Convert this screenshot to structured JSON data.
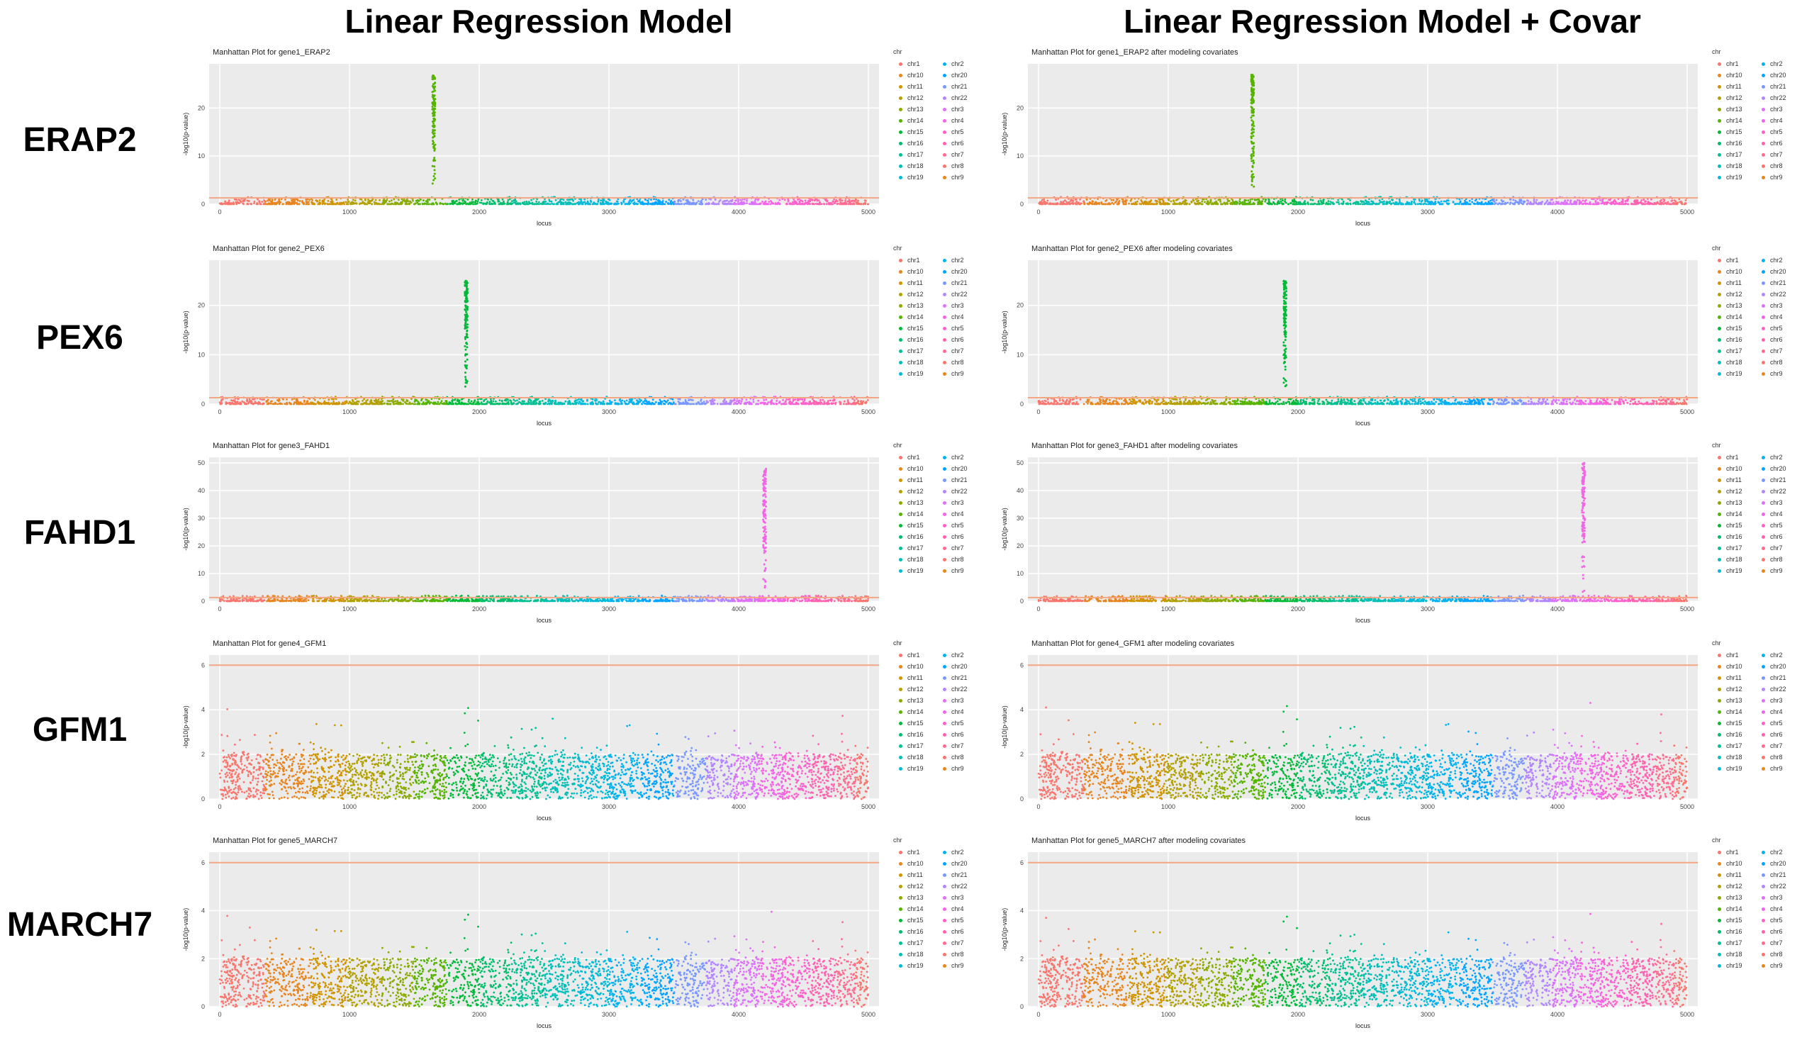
{
  "column_titles": [
    "Linear Regression Model",
    "Linear Regression Model + Covar"
  ],
  "row_labels": [
    "ERAP2",
    "PEX6",
    "FAHD1",
    "GFM1",
    "MARCH7"
  ],
  "legend": {
    "title": "chr",
    "entries": [
      "chr1",
      "chr10",
      "chr11",
      "chr12",
      "chr13",
      "chr14",
      "chr15",
      "chr16",
      "chr17",
      "chr18",
      "chr19",
      "chr2",
      "chr20",
      "chr21",
      "chr22",
      "chr3",
      "chr4",
      "chr5",
      "chr6",
      "chr7",
      "chr8",
      "chr9"
    ],
    "colors": [
      "#F8766D",
      "#E7851E",
      "#D09400",
      "#B2A100",
      "#8BAB00",
      "#55B400",
      "#00BA38",
      "#00BE6C",
      "#00C094",
      "#00BFB8",
      "#00BBD6",
      "#00B3EE",
      "#00A5FF",
      "#7997FF",
      "#B385FF",
      "#DC71FA",
      "#F265E7",
      "#FE60CE",
      "#FF62B0",
      "#FF6C91",
      "#F8766D",
      "#E7851E"
    ]
  },
  "chart_data": [
    {
      "type": "scatter",
      "title": "Manhattan Plot for gene1_ERAP2",
      "xlabel": "locus",
      "ylabel": "-log10(p-value)",
      "xlim": [
        0,
        5000
      ],
      "ylim": [
        0,
        28
      ],
      "y_ticks": [
        0,
        10,
        20
      ],
      "x_ticks": [
        0,
        1000,
        2000,
        3000,
        4000,
        5000
      ],
      "threshold": 1.3,
      "peak": {
        "x": 1650,
        "max": 27,
        "min_ls": 1.3
      },
      "baseline_max": 1.5,
      "grid": true
    },
    {
      "type": "scatter",
      "title": "Manhattan Plot for gene1_ERAP2 after modeling covariates",
      "xlabel": "locus",
      "ylabel": "-log10(p-value)",
      "xlim": [
        0,
        5000
      ],
      "ylim": [
        0,
        28
      ],
      "y_ticks": [
        0,
        10,
        20
      ],
      "x_ticks": [
        0,
        1000,
        2000,
        3000,
        4000,
        5000
      ],
      "threshold": 1.3,
      "peak": {
        "x": 1650,
        "max": 27,
        "min_ls": 1.3
      },
      "baseline_max": 1.5,
      "grid": true
    },
    {
      "type": "scatter",
      "title": "Manhattan Plot for gene2_PEX6",
      "xlabel": "locus",
      "ylabel": "-log10(p-value)",
      "xlim": [
        0,
        5000
      ],
      "ylim": [
        0,
        28
      ],
      "y_ticks": [
        0,
        10,
        20
      ],
      "x_ticks": [
        0,
        1000,
        2000,
        3000,
        4000,
        5000
      ],
      "threshold": 1.3,
      "peak": {
        "x": 1900,
        "max": 25,
        "min_ls": 1.3
      },
      "baseline_max": 1.5,
      "grid": true
    },
    {
      "type": "scatter",
      "title": "Manhattan Plot for gene2_PEX6 after modeling covariates",
      "xlabel": "locus",
      "ylabel": "-log10(p-value)",
      "xlim": [
        0,
        5000
      ],
      "ylim": [
        0,
        28
      ],
      "y_ticks": [
        0,
        10,
        20
      ],
      "x_ticks": [
        0,
        1000,
        2000,
        3000,
        4000,
        5000
      ],
      "threshold": 1.3,
      "peak": {
        "x": 1900,
        "max": 25,
        "min_ls": 1.3
      },
      "baseline_max": 1.5,
      "grid": true
    },
    {
      "type": "scatter",
      "title": "Manhattan Plot for gene3_FAHD1",
      "xlabel": "locus",
      "ylabel": "-log10(p-value)",
      "xlim": [
        0,
        5000
      ],
      "ylim": [
        0,
        50
      ],
      "y_ticks": [
        0,
        10,
        20,
        30,
        40,
        50
      ],
      "x_ticks": [
        0,
        1000,
        2000,
        3000,
        4000,
        5000
      ],
      "threshold": 1.3,
      "peak": {
        "x": 4200,
        "max": 48,
        "min_ls": 1.3
      },
      "baseline_max": 2,
      "grid": true
    },
    {
      "type": "scatter",
      "title": "Manhattan Plot for gene3_FAHD1 after modeling covariates",
      "xlabel": "locus",
      "ylabel": "-log10(p-value)",
      "xlim": [
        0,
        5000
      ],
      "ylim": [
        0,
        50
      ],
      "y_ticks": [
        0,
        10,
        20,
        30,
        40,
        50
      ],
      "x_ticks": [
        0,
        1000,
        2000,
        3000,
        4000,
        5000
      ],
      "threshold": 1.3,
      "peak": {
        "x": 4200,
        "max": 50,
        "min_ls": 1.3
      },
      "baseline_max": 2,
      "grid": true
    },
    {
      "type": "scatter",
      "title": "Manhattan Plot for gene4_GFM1",
      "xlabel": "locus",
      "ylabel": "-log10(p-value)",
      "xlim": [
        0,
        5000
      ],
      "ylim": [
        0,
        6.2
      ],
      "y_ticks": [
        0,
        2,
        4,
        6
      ],
      "x_ticks": [
        0,
        1000,
        2000,
        3000,
        4000,
        5000
      ],
      "threshold": 6,
      "peak": null,
      "baseline_max": 2,
      "max_outlier": 4.5,
      "grid": true
    },
    {
      "type": "scatter",
      "title": "Manhattan Plot for gene4_GFM1 after modeling covariates",
      "xlabel": "locus",
      "ylabel": "-log10(p-value)",
      "xlim": [
        0,
        5000
      ],
      "ylim": [
        0,
        6.2
      ],
      "y_ticks": [
        0,
        2,
        4,
        6
      ],
      "x_ticks": [
        0,
        1000,
        2000,
        3000,
        4000,
        5000
      ],
      "threshold": 6,
      "peak": null,
      "baseline_max": 2,
      "max_outlier": 4.6,
      "grid": true
    },
    {
      "type": "scatter",
      "title": "Manhattan Plot for gene5_MARCH7",
      "xlabel": "locus",
      "ylabel": "-log10(p-value)",
      "xlim": [
        0,
        5000
      ],
      "ylim": [
        0,
        6.2
      ],
      "y_ticks": [
        0,
        2,
        4,
        6
      ],
      "x_ticks": [
        0,
        1000,
        2000,
        3000,
        4000,
        5000
      ],
      "threshold": 6,
      "peak": null,
      "baseline_max": 2,
      "max_outlier": 4.2,
      "grid": true
    },
    {
      "type": "scatter",
      "title": "Manhattan Plot for gene5_MARCH7 after modeling covariates",
      "xlabel": "locus",
      "ylabel": "-log10(p-value)",
      "xlim": [
        0,
        5000
      ],
      "ylim": [
        0,
        6.2
      ],
      "y_ticks": [
        0,
        2,
        4,
        6
      ],
      "x_ticks": [
        0,
        1000,
        2000,
        3000,
        4000,
        5000
      ],
      "threshold": 6,
      "peak": null,
      "baseline_max": 2,
      "max_outlier": 4.1,
      "grid": true
    }
  ]
}
